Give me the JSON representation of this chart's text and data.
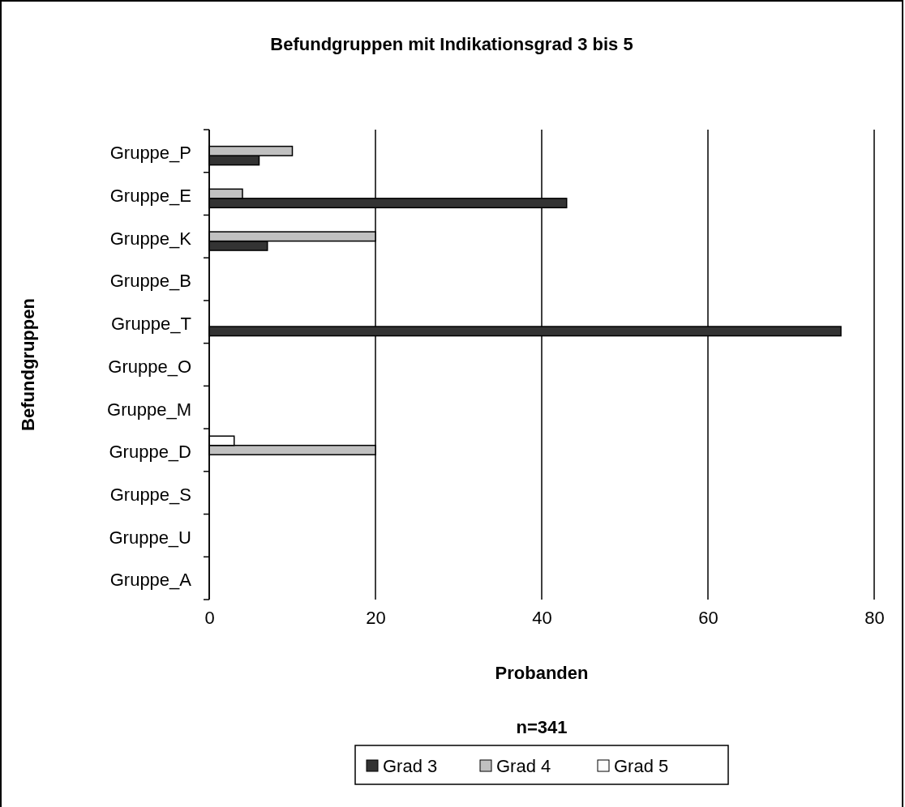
{
  "chart_data": {
    "type": "bar",
    "orientation": "horizontal",
    "title": "Befundgruppen mit Indikationsgrad 3 bis 5",
    "xlabel": "Probanden",
    "ylabel": "Befundgruppen",
    "categories": [
      "Gruppe_P",
      "Gruppe_E",
      "Gruppe_K",
      "Gruppe_B",
      "Gruppe_T",
      "Gruppe_O",
      "Gruppe_M",
      "Gruppe_D",
      "Gruppe_S",
      "Gruppe_U",
      "Gruppe_A"
    ],
    "series": [
      {
        "name": "Grad 3",
        "color": "#333333",
        "values": [
          6,
          43,
          7,
          0,
          76,
          0,
          0,
          0,
          0,
          0,
          0
        ]
      },
      {
        "name": "Grad 4",
        "color": "#c0c0c0",
        "values": [
          10,
          4,
          20,
          0,
          0,
          0,
          0,
          20,
          0,
          0,
          0
        ]
      },
      {
        "name": "Grad 5",
        "color": "#ffffff",
        "values": [
          0,
          0,
          0,
          0,
          0,
          0,
          0,
          3,
          0,
          0,
          0
        ]
      }
    ],
    "xlim": [
      0,
      80
    ],
    "xticks": [
      0,
      20,
      40,
      60,
      80
    ],
    "grid": "x",
    "legend": "bottom",
    "annotations": [
      "n=341"
    ]
  }
}
